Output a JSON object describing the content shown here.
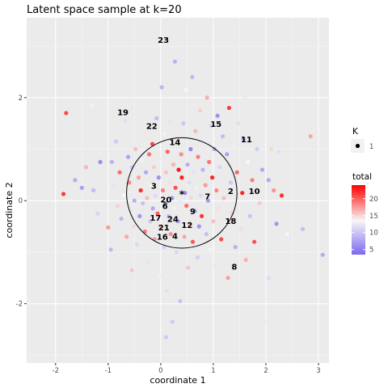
{
  "chart_data": {
    "type": "scatter",
    "title": "Latent space sample at k=20",
    "xlabel": "coordinate 1",
    "ylabel": "coordinate 2",
    "xlim": [
      -2.55,
      3.2
    ],
    "ylim": [
      -3.15,
      3.55
    ],
    "x_ticks": [
      -2,
      -1,
      0,
      1,
      2,
      3
    ],
    "y_ticks": [
      -2,
      0,
      2
    ],
    "grid": true,
    "color_scale": {
      "title": "total",
      "min": 3.5,
      "max": 24,
      "ticks": [
        5,
        10,
        15,
        20
      ],
      "low_color": "#7b68ee",
      "mid_color": "#f7f7f7",
      "high_color": "#ff0000",
      "mid_value": 13.5
    },
    "size_legend": {
      "title": "K",
      "label": "1"
    },
    "center": {
      "x": 0.4,
      "y": 0.15,
      "radius": 1.05
    },
    "cluster_labels": [
      {
        "text": "23",
        "x": 0.05,
        "y": 3.1
      },
      {
        "text": "19",
        "x": -0.72,
        "y": 1.7
      },
      {
        "text": "22",
        "x": -0.17,
        "y": 1.43
      },
      {
        "text": "15",
        "x": 1.05,
        "y": 1.47
      },
      {
        "text": "11",
        "x": 1.63,
        "y": 1.17
      },
      {
        "text": "14",
        "x": 0.27,
        "y": 1.12
      },
      {
        "text": "3",
        "x": -0.13,
        "y": 0.27
      },
      {
        "text": "2",
        "x": 1.33,
        "y": 0.17
      },
      {
        "text": "10",
        "x": 1.78,
        "y": 0.17
      },
      {
        "text": "7",
        "x": 0.89,
        "y": 0.07
      },
      {
        "text": "20",
        "x": 0.1,
        "y": 0.0
      },
      {
        "text": "9",
        "x": 0.61,
        "y": -0.22
      },
      {
        "text": "6",
        "x": 0.08,
        "y": -0.12
      },
      {
        "text": "17",
        "x": -0.1,
        "y": -0.35
      },
      {
        "text": "24",
        "x": 0.23,
        "y": -0.37
      },
      {
        "text": "18",
        "x": 1.33,
        "y": -0.41
      },
      {
        "text": "21",
        "x": 0.06,
        "y": -0.54
      },
      {
        "text": "12",
        "x": 0.5,
        "y": -0.49
      },
      {
        "text": "16",
        "x": 0.03,
        "y": -0.72
      },
      {
        "text": "4",
        "x": 0.27,
        "y": -0.7
      },
      {
        "text": "8",
        "x": 1.4,
        "y": -1.3
      }
    ],
    "points": [
      {
        "x": -2.38,
        "y": 2.68,
        "v": 12.6
      },
      {
        "x": -1.8,
        "y": 1.7,
        "v": 20.8
      },
      {
        "x": -1.85,
        "y": 0.13,
        "v": 21.5
      },
      {
        "x": -1.63,
        "y": 0.4,
        "v": 8.2
      },
      {
        "x": -1.5,
        "y": 0.25,
        "v": 7.3
      },
      {
        "x": -1.42,
        "y": 0.65,
        "v": 16.3
      },
      {
        "x": -1.28,
        "y": 0.2,
        "v": 9.4
      },
      {
        "x": -1.2,
        "y": -0.25,
        "v": 11.0
      },
      {
        "x": -1.15,
        "y": 0.75,
        "v": 6.0
      },
      {
        "x": -1.05,
        "y": 0.58,
        "v": 14.1
      },
      {
        "x": -1.0,
        "y": -0.52,
        "v": 17.4
      },
      {
        "x": -0.93,
        "y": 0.75,
        "v": 8.7
      },
      {
        "x": -0.9,
        "y": 0.3,
        "v": 12.0
      },
      {
        "x": -0.85,
        "y": 1.15,
        "v": 10.3
      },
      {
        "x": -0.82,
        "y": -0.1,
        "v": 15.1
      },
      {
        "x": -0.78,
        "y": 0.55,
        "v": 19.6
      },
      {
        "x": -0.75,
        "y": -0.35,
        "v": 9.0
      },
      {
        "x": -0.7,
        "y": 0.1,
        "v": 13.3
      },
      {
        "x": -0.68,
        "y": 1.55,
        "v": 11.7
      },
      {
        "x": -0.65,
        "y": -0.7,
        "v": 16.8
      },
      {
        "x": -0.62,
        "y": 0.85,
        "v": 7.6
      },
      {
        "x": -0.6,
        "y": 0.35,
        "v": 18.2
      },
      {
        "x": -0.57,
        "y": -0.2,
        "v": 12.4
      },
      {
        "x": -0.55,
        "y": 0.65,
        "v": 10.6
      },
      {
        "x": -0.52,
        "y": -0.5,
        "v": 14.8
      },
      {
        "x": -0.5,
        "y": 0.0,
        "v": 8.4
      },
      {
        "x": -0.48,
        "y": 1.0,
        "v": 15.9
      },
      {
        "x": -0.45,
        "y": -0.85,
        "v": 11.3
      },
      {
        "x": -0.42,
        "y": 0.45,
        "v": 17.0
      },
      {
        "x": -0.4,
        "y": -0.3,
        "v": 6.8
      },
      {
        "x": -0.38,
        "y": 0.2,
        "v": 22.1
      },
      {
        "x": -0.36,
        "y": 0.78,
        "v": 13.0
      },
      {
        "x": -0.34,
        "y": -0.05,
        "v": 9.7
      },
      {
        "x": -0.32,
        "y": 1.3,
        "v": 14.4
      },
      {
        "x": -0.3,
        "y": -0.6,
        "v": 18.9
      },
      {
        "x": -0.28,
        "y": 0.55,
        "v": 7.9
      },
      {
        "x": -0.26,
        "y": 0.05,
        "v": 16.1
      },
      {
        "x": -0.24,
        "y": -1.2,
        "v": 12.2
      },
      {
        "x": -0.22,
        "y": 0.9,
        "v": 19.2
      },
      {
        "x": -0.2,
        "y": -0.4,
        "v": 10.0
      },
      {
        "x": -0.18,
        "y": 0.3,
        "v": 13.6
      },
      {
        "x": -0.16,
        "y": 1.1,
        "v": 21.0
      },
      {
        "x": -0.15,
        "y": -0.15,
        "v": 8.0
      },
      {
        "x": -0.13,
        "y": 0.65,
        "v": 15.4
      },
      {
        "x": -0.12,
        "y": -0.75,
        "v": 17.7
      },
      {
        "x": -0.1,
        "y": 0.1,
        "v": 11.5
      },
      {
        "x": -0.08,
        "y": 1.6,
        "v": 9.2
      },
      {
        "x": -0.06,
        "y": -0.25,
        "v": 20.0
      },
      {
        "x": -0.04,
        "y": 0.45,
        "v": 6.4
      },
      {
        "x": -0.02,
        "y": -1.45,
        "v": 14.0
      },
      {
        "x": 0.0,
        "y": 0.8,
        "v": 12.8
      },
      {
        "x": 0.0,
        "y": -0.5,
        "v": 16.6
      },
      {
        "x": 0.02,
        "y": 2.2,
        "v": 8.9
      },
      {
        "x": 0.04,
        "y": 0.2,
        "v": 18.5
      },
      {
        "x": 0.06,
        "y": -0.9,
        "v": 10.8
      },
      {
        "x": 0.07,
        "y": 1.3,
        "v": 13.9
      },
      {
        "x": 0.09,
        "y": -0.05,
        "v": 7.1
      },
      {
        "x": 0.1,
        "y": 0.55,
        "v": 15.7
      },
      {
        "x": 0.12,
        "y": -1.75,
        "v": 11.9
      },
      {
        "x": 0.13,
        "y": 0.95,
        "v": 19.9
      },
      {
        "x": 0.15,
        "y": -0.3,
        "v": 9.5
      },
      {
        "x": 0.16,
        "y": 0.35,
        "v": 14.6
      },
      {
        "x": 0.18,
        "y": 1.55,
        "v": 12.1
      },
      {
        "x": 0.19,
        "y": -0.65,
        "v": 17.9
      },
      {
        "x": 0.21,
        "y": 0.05,
        "v": 5.8
      },
      {
        "x": 0.22,
        "y": -2.35,
        "v": 10.4
      },
      {
        "x": 0.24,
        "y": 0.7,
        "v": 16.4
      },
      {
        "x": 0.25,
        "y": -0.15,
        "v": 13.1
      },
      {
        "x": 0.27,
        "y": 2.7,
        "v": 8.6
      },
      {
        "x": 0.28,
        "y": 0.25,
        "v": 20.6
      },
      {
        "x": 0.3,
        "y": -1.0,
        "v": 11.2
      },
      {
        "x": 0.31,
        "y": 1.2,
        "v": 15.0
      },
      {
        "x": 0.33,
        "y": -0.4,
        "v": 7.4
      },
      {
        "x": 0.34,
        "y": 0.6,
        "v": 23.2
      },
      {
        "x": 0.36,
        "y": 0.0,
        "v": 12.5
      },
      {
        "x": 0.37,
        "y": -1.95,
        "v": 9.8
      },
      {
        "x": 0.39,
        "y": 0.9,
        "v": 18.0
      },
      {
        "x": 0.4,
        "y": 0.45,
        "v": 22.8
      },
      {
        "x": 0.42,
        "y": -0.25,
        "v": 14.2
      },
      {
        "x": 0.43,
        "y": 1.5,
        "v": 10.1
      },
      {
        "x": 0.45,
        "y": -0.7,
        "v": 16.9
      },
      {
        "x": 0.46,
        "y": 0.15,
        "v": 6.1
      },
      {
        "x": 0.48,
        "y": 2.15,
        "v": 13.4
      },
      {
        "x": 0.49,
        "y": -0.1,
        "v": 19.4
      },
      {
        "x": 0.51,
        "y": 0.7,
        "v": 8.3
      },
      {
        "x": 0.52,
        "y": -1.3,
        "v": 15.6
      },
      {
        "x": 0.54,
        "y": 0.35,
        "v": 11.6
      },
      {
        "x": 0.55,
        "y": -0.45,
        "v": 17.2
      },
      {
        "x": 0.57,
        "y": 1.0,
        "v": 5.5
      },
      {
        "x": 0.58,
        "y": 0.05,
        "v": 14.9
      },
      {
        "x": 0.6,
        "y": 2.4,
        "v": 9.1
      },
      {
        "x": 0.61,
        "y": -0.8,
        "v": 20.3
      },
      {
        "x": 0.63,
        "y": 0.55,
        "v": 12.0
      },
      {
        "x": 0.65,
        "y": -0.2,
        "v": 7.7
      },
      {
        "x": 0.66,
        "y": 1.35,
        "v": 16.2
      },
      {
        "x": 0.68,
        "y": 0.25,
        "v": 13.8
      },
      {
        "x": 0.7,
        "y": -1.1,
        "v": 10.7
      },
      {
        "x": 0.71,
        "y": 0.85,
        "v": 18.7
      },
      {
        "x": 0.73,
        "y": -0.5,
        "v": 6.6
      },
      {
        "x": 0.75,
        "y": 1.75,
        "v": 15.3
      },
      {
        "x": 0.76,
        "y": 0.1,
        "v": 11.4
      },
      {
        "x": 0.78,
        "y": -0.3,
        "v": 21.7
      },
      {
        "x": 0.8,
        "y": 0.6,
        "v": 8.8
      },
      {
        "x": 0.81,
        "y": -1.6,
        "v": 14.3
      },
      {
        "x": 0.83,
        "y": 1.15,
        "v": 12.7
      },
      {
        "x": 0.85,
        "y": 0.3,
        "v": 17.5
      },
      {
        "x": 0.87,
        "y": -0.65,
        "v": 9.6
      },
      {
        "x": 0.88,
        "y": 2.0,
        "v": 16.7
      },
      {
        "x": 0.9,
        "y": 0.0,
        "v": 7.0
      },
      {
        "x": 0.92,
        "y": 0.75,
        "v": 19.1
      },
      {
        "x": 0.94,
        "y": -0.95,
        "v": 13.2
      },
      {
        "x": 0.96,
        "y": 1.45,
        "v": 10.9
      },
      {
        "x": 0.98,
        "y": 0.45,
        "v": 22.4
      },
      {
        "x": 1.0,
        "y": -0.4,
        "v": 15.8
      },
      {
        "x": 1.02,
        "y": 1.0,
        "v": 8.1
      },
      {
        "x": 1.04,
        "y": -1.25,
        "v": 12.3
      },
      {
        "x": 1.06,
        "y": 0.2,
        "v": 18.3
      },
      {
        "x": 1.08,
        "y": 1.65,
        "v": 6.3
      },
      {
        "x": 1.1,
        "y": -0.15,
        "v": 14.5
      },
      {
        "x": 1.12,
        "y": 0.65,
        "v": 11.1
      },
      {
        "x": 1.15,
        "y": -0.75,
        "v": 20.9
      },
      {
        "x": 1.18,
        "y": 1.25,
        "v": 9.3
      },
      {
        "x": 1.2,
        "y": 0.05,
        "v": 16.0
      },
      {
        "x": 1.23,
        "y": -0.45,
        "v": 13.7
      },
      {
        "x": 1.26,
        "y": 0.9,
        "v": 7.5
      },
      {
        "x": 1.28,
        "y": -1.5,
        "v": 17.3
      },
      {
        "x": 1.3,
        "y": 1.8,
        "v": 21.4
      },
      {
        "x": 1.33,
        "y": 0.35,
        "v": 10.2
      },
      {
        "x": 1.36,
        "y": -0.25,
        "v": 15.2
      },
      {
        "x": 1.39,
        "y": 1.05,
        "v": 12.9
      },
      {
        "x": 1.42,
        "y": -0.9,
        "v": 8.5
      },
      {
        "x": 1.45,
        "y": 0.55,
        "v": 19.7
      },
      {
        "x": 1.48,
        "y": 1.5,
        "v": 11.8
      },
      {
        "x": 1.52,
        "y": -0.55,
        "v": 14.7
      },
      {
        "x": 1.55,
        "y": 0.15,
        "v": 22.6
      },
      {
        "x": 1.58,
        "y": 1.2,
        "v": 6.9
      },
      {
        "x": 1.62,
        "y": -1.15,
        "v": 16.5
      },
      {
        "x": 1.66,
        "y": 0.75,
        "v": 13.5
      },
      {
        "x": 1.7,
        "y": -0.3,
        "v": 9.9
      },
      {
        "x": 1.74,
        "y": 0.4,
        "v": 18.6
      },
      {
        "x": 1.78,
        "y": -0.8,
        "v": 20.5
      },
      {
        "x": 1.83,
        "y": 1.0,
        "v": 10.5
      },
      {
        "x": 1.88,
        "y": -0.05,
        "v": 15.5
      },
      {
        "x": 1.93,
        "y": 0.6,
        "v": 7.8
      },
      {
        "x": 1.98,
        "y": -2.35,
        "v": 12.6
      },
      {
        "x": 2.05,
        "y": 0.4,
        "v": 8.0
      },
      {
        "x": 2.1,
        "y": 1.0,
        "v": 14.9
      },
      {
        "x": 2.15,
        "y": 0.2,
        "v": 17.8
      },
      {
        "x": 2.2,
        "y": -0.45,
        "v": 6.7
      },
      {
        "x": 2.25,
        "y": 0.95,
        "v": 11.9
      },
      {
        "x": 2.3,
        "y": 0.1,
        "v": 21.9
      },
      {
        "x": 2.4,
        "y": -0.65,
        "v": 13.3
      },
      {
        "x": 2.7,
        "y": -0.55,
        "v": 9.4
      },
      {
        "x": 2.85,
        "y": 1.25,
        "v": 16.9
      },
      {
        "x": 3.08,
        "y": -1.05,
        "v": 8.2
      },
      {
        "x": -1.3,
        "y": 1.85,
        "v": 13.8
      },
      {
        "x": -2.1,
        "y": -0.3,
        "v": 14.1
      },
      {
        "x": 0.1,
        "y": -2.65,
        "v": 10.2
      },
      {
        "x": 1.6,
        "y": 2.0,
        "v": 12.4
      },
      {
        "x": -0.55,
        "y": -1.35,
        "v": 15.6
      },
      {
        "x": 2.05,
        "y": -1.5,
        "v": 11.5
      },
      {
        "x": -0.95,
        "y": -0.95,
        "v": 9.0
      }
    ]
  }
}
